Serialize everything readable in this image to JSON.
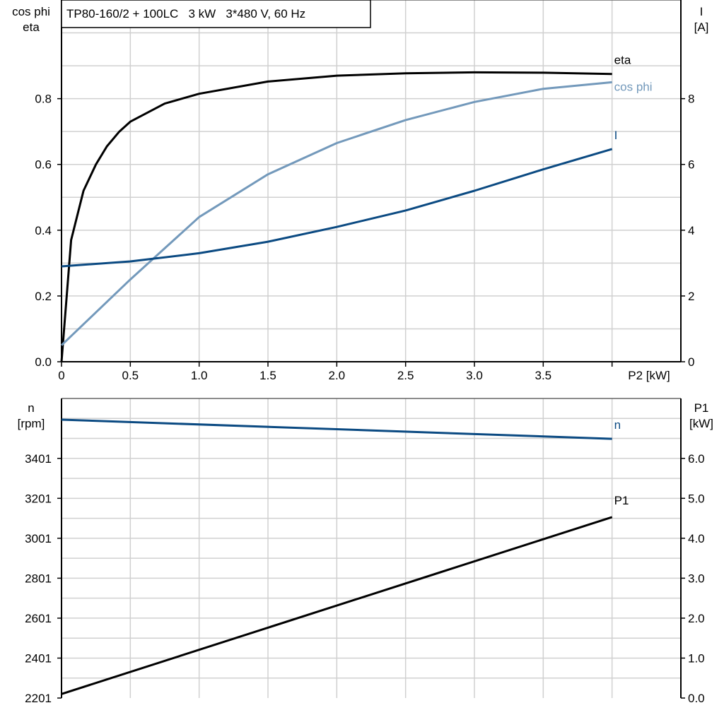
{
  "chart_data": [
    {
      "type": "line",
      "title": "TP80-160/2 + 100LC   3 kW   3*480 V, 60 Hz",
      "xlabel": "P2 [kW]",
      "ylabel_left": [
        "cos phi",
        "eta"
      ],
      "ylabel_right": [
        "I",
        "[A]"
      ],
      "xlim": [
        0,
        4.5
      ],
      "ylim_left": [
        0,
        1.1
      ],
      "ylim_right": [
        0,
        11
      ],
      "x_ticks": [
        "0",
        "0.5",
        "1.0",
        "1.5",
        "2.0",
        "2.5",
        "3.0",
        "3.5",
        ""
      ],
      "y_left_ticks": [
        "0.0",
        "0.2",
        "0.4",
        "0.6",
        "0.8"
      ],
      "y_right_ticks": [
        "0",
        "2",
        "4",
        "6",
        "8"
      ],
      "grid": true,
      "series": [
        {
          "name": "eta",
          "axis": "left",
          "color": "#000000",
          "x": [
            0,
            0.07,
            0.16,
            0.25,
            0.33,
            0.42,
            0.5,
            0.75,
            1.0,
            1.5,
            2.0,
            2.5,
            3.0,
            3.5,
            4.0
          ],
          "y": [
            0,
            0.37,
            0.52,
            0.6,
            0.655,
            0.7,
            0.73,
            0.785,
            0.815,
            0.852,
            0.87,
            0.877,
            0.88,
            0.879,
            0.875
          ]
        },
        {
          "name": "cos phi",
          "axis": "left",
          "color": "#7399bb",
          "x": [
            0,
            0.5,
            1.0,
            1.5,
            2.0,
            2.5,
            3.0,
            3.5,
            4.0
          ],
          "y": [
            0.05,
            0.25,
            0.44,
            0.57,
            0.665,
            0.735,
            0.79,
            0.83,
            0.85
          ]
        },
        {
          "name": "I",
          "axis": "right",
          "color": "#0b4a82",
          "x": [
            0,
            0.5,
            1.0,
            1.5,
            2.0,
            2.5,
            3.0,
            3.5,
            4.0
          ],
          "y": [
            2.9,
            3.05,
            3.3,
            3.65,
            4.1,
            4.6,
            5.2,
            5.85,
            6.47
          ]
        }
      ]
    },
    {
      "type": "line",
      "xlim": [
        0,
        4.5
      ],
      "ylabel_left": [
        "n",
        "[rpm]"
      ],
      "ylabel_right": [
        "P1",
        "[kW]"
      ],
      "ylim_left": [
        2201,
        3701
      ],
      "ylim_right": [
        0,
        7.5
      ],
      "y_left_ticks": [
        "2201",
        "2401",
        "2601",
        "2801",
        "3001",
        "3201",
        "3401"
      ],
      "y_right_ticks": [
        "0.0",
        "1.0",
        "2.0",
        "3.0",
        "4.0",
        "5.0",
        "6.0"
      ],
      "grid": true,
      "series": [
        {
          "name": "n",
          "axis": "left",
          "color": "#0b4a82",
          "x": [
            0,
            4.0
          ],
          "y": [
            3595,
            3499
          ]
        },
        {
          "name": "P1",
          "axis": "right",
          "color": "#000000",
          "x": [
            0,
            4.0
          ],
          "y": [
            0.1,
            4.53
          ]
        }
      ]
    }
  ]
}
